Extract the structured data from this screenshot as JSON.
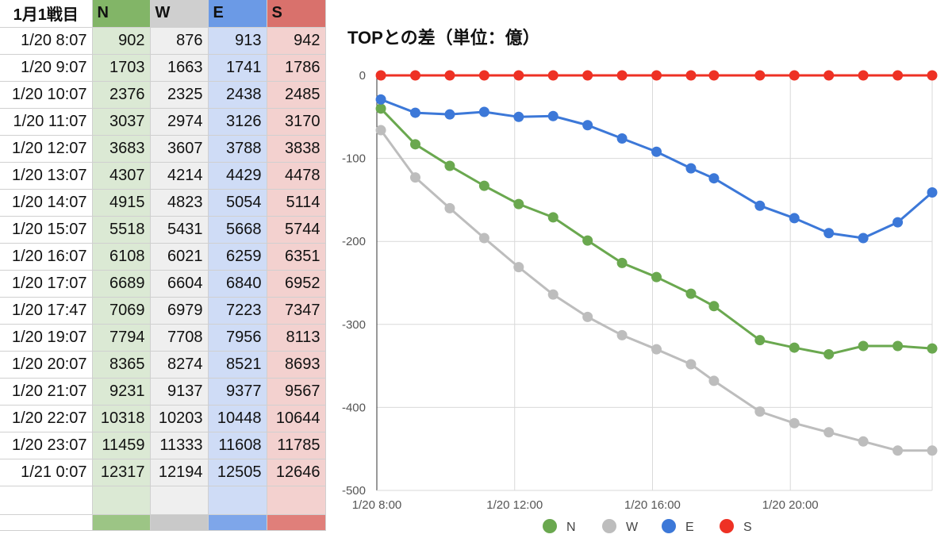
{
  "sheet": {
    "header": [
      "1月1戦目",
      "N",
      "W",
      "E",
      "S"
    ],
    "rows": [
      [
        "1/20 8:07",
        "902",
        "876",
        "913",
        "942"
      ],
      [
        "1/20 9:07",
        "1703",
        "1663",
        "1741",
        "1786"
      ],
      [
        "1/20 10:07",
        "2376",
        "2325",
        "2438",
        "2485"
      ],
      [
        "1/20 11:07",
        "3037",
        "2974",
        "3126",
        "3170"
      ],
      [
        "1/20 12:07",
        "3683",
        "3607",
        "3788",
        "3838"
      ],
      [
        "1/20 13:07",
        "4307",
        "4214",
        "4429",
        "4478"
      ],
      [
        "1/20 14:07",
        "4915",
        "4823",
        "5054",
        "5114"
      ],
      [
        "1/20 15:07",
        "5518",
        "5431",
        "5668",
        "5744"
      ],
      [
        "1/20 16:07",
        "6108",
        "6021",
        "6259",
        "6351"
      ],
      [
        "1/20 17:07",
        "6689",
        "6604",
        "6840",
        "6952"
      ],
      [
        "1/20 17:47",
        "7069",
        "6979",
        "7223",
        "7347"
      ],
      [
        "1/20 19:07",
        "7794",
        "7708",
        "7956",
        "8113"
      ],
      [
        "1/20 20:07",
        "8365",
        "8274",
        "8521",
        "8693"
      ],
      [
        "1/20 21:07",
        "9231",
        "9137",
        "9377",
        "9567"
      ],
      [
        "1/20 22:07",
        "10318",
        "10203",
        "10448",
        "10644"
      ],
      [
        "1/20 23:07",
        "11459",
        "11333",
        "11608",
        "11785"
      ],
      [
        "1/21 0:07",
        "12317",
        "12194",
        "12505",
        "12646"
      ]
    ]
  },
  "chart_data": {
    "type": "line",
    "title": "TOPとの差（単位：億）",
    "xlabel": "",
    "ylabel": "",
    "ylim": [
      -500,
      0
    ],
    "yticks": [
      0,
      -100,
      -200,
      -300,
      -400,
      -500
    ],
    "xticks": [
      "1/20 8:00",
      "1/20 12:00",
      "1/20 16:00",
      "1/20 20:00"
    ],
    "xrange_hours": [
      8,
      24.1167
    ],
    "xtick_hours": [
      8,
      12,
      16,
      20
    ],
    "x_hours": [
      8.1167,
      9.1167,
      10.1167,
      11.1167,
      12.1167,
      13.1167,
      14.1167,
      15.1167,
      16.1167,
      17.1167,
      17.7833,
      19.1167,
      20.1167,
      21.1167,
      22.1167,
      23.1167,
      24.1167
    ],
    "grid": true,
    "legend_position": "bottom",
    "series": [
      {
        "name": "N",
        "color": "#6aa84f",
        "values": [
          -40,
          -83,
          -109,
          -133,
          -155,
          -171,
          -199,
          -226,
          -243,
          -263,
          -278,
          -319,
          -328,
          -336,
          -326,
          -326,
          -329
        ]
      },
      {
        "name": "W",
        "color": "#bdbdbd",
        "values": [
          -66,
          -123,
          -160,
          -196,
          -231,
          -264,
          -291,
          -313,
          -330,
          -348,
          -368,
          -405,
          -419,
          -430,
          -441,
          -452,
          -452
        ]
      },
      {
        "name": "E",
        "color": "#3c78d8",
        "values": [
          -29,
          -45,
          -47,
          -44,
          -50,
          -49,
          -60,
          -76,
          -92,
          -112,
          -124,
          -157,
          -172,
          -190,
          -196,
          -177,
          -141
        ]
      },
      {
        "name": "S",
        "color": "#ee3124",
        "values": [
          0,
          0,
          0,
          0,
          0,
          0,
          0,
          0,
          0,
          0,
          0,
          0,
          0,
          0,
          0,
          0,
          0
        ]
      }
    ]
  }
}
